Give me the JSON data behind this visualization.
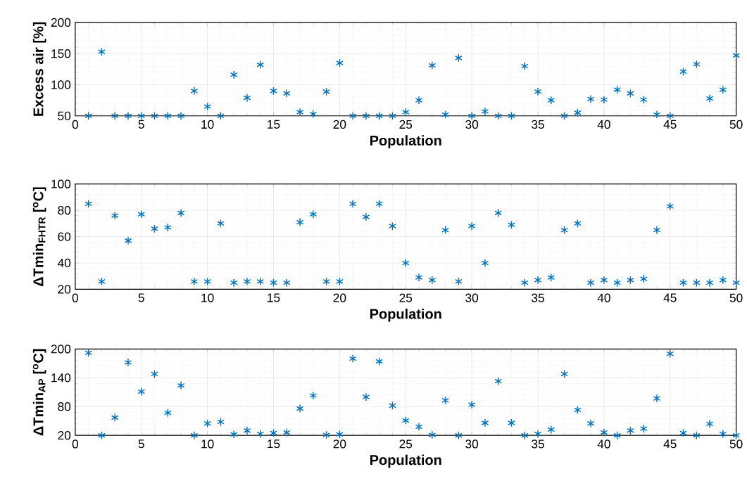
{
  "chart_data": [
    {
      "type": "scatter",
      "xlabel": "Population",
      "ylabel": "Excess air [%]",
      "color": "#0072bd",
      "marker": "cross",
      "grid": true,
      "xlim": [
        0,
        50
      ],
      "xticks": [
        0,
        5,
        10,
        15,
        20,
        25,
        30,
        35,
        40,
        45,
        50
      ],
      "ylim": [
        50,
        200
      ],
      "yticks": [
        50,
        100,
        150,
        200
      ],
      "x": [
        1,
        2,
        3,
        4,
        5,
        6,
        7,
        8,
        9,
        10,
        11,
        12,
        13,
        14,
        15,
        16,
        17,
        18,
        19,
        20,
        21,
        22,
        23,
        24,
        25,
        26,
        27,
        28,
        29,
        30,
        31,
        32,
        33,
        34,
        35,
        36,
        37,
        38,
        39,
        40,
        41,
        42,
        43,
        44,
        45,
        46,
        47,
        48,
        49,
        50
      ],
      "values": [
        50,
        153,
        50,
        50,
        50,
        50,
        50,
        50,
        90,
        65,
        50,
        116,
        79,
        132,
        90,
        86,
        56,
        53,
        89,
        135,
        50,
        50,
        50,
        50,
        56,
        75,
        131,
        52,
        143,
        50,
        57,
        50,
        50,
        130,
        89,
        75,
        50,
        55,
        77,
        76,
        92,
        86,
        76,
        52,
        50,
        121,
        133,
        78,
        92,
        147
      ]
    },
    {
      "type": "scatter",
      "xlabel": "Population",
      "ylabel": "ΔTmin$_{FHTR}$ [$^{o}$C]",
      "color": "#0072bd",
      "marker": "cross",
      "grid": true,
      "xlim": [
        0,
        50
      ],
      "xticks": [
        0,
        5,
        10,
        15,
        20,
        25,
        30,
        35,
        40,
        45,
        50
      ],
      "ylim": [
        20,
        100
      ],
      "yticks": [
        20,
        40,
        60,
        80,
        100
      ],
      "x": [
        1,
        2,
        3,
        4,
        5,
        6,
        7,
        8,
        9,
        10,
        11,
        12,
        13,
        14,
        15,
        16,
        17,
        18,
        19,
        20,
        21,
        22,
        23,
        24,
        25,
        26,
        27,
        28,
        29,
        30,
        31,
        32,
        33,
        34,
        35,
        36,
        37,
        38,
        39,
        40,
        41,
        42,
        43,
        44,
        45,
        46,
        47,
        48,
        49,
        50
      ],
      "values": [
        85,
        26,
        76,
        57,
        77,
        66,
        67,
        78,
        26,
        26,
        70,
        25,
        26,
        26,
        25,
        25,
        71,
        77,
        26,
        26,
        85,
        75,
        85,
        68,
        40,
        29,
        27,
        65,
        26,
        68,
        40,
        78,
        69,
        25,
        27,
        29,
        65,
        70,
        25,
        27,
        25,
        27,
        28,
        65,
        83,
        25,
        25,
        25,
        27,
        25
      ]
    },
    {
      "type": "scatter",
      "xlabel": "Population",
      "ylabel": "ΔTmin$_{AP}$ [$^{o}$C]",
      "color": "#0072bd",
      "marker": "cross",
      "grid": true,
      "xlim": [
        0,
        50
      ],
      "xticks": [
        0,
        5,
        10,
        15,
        20,
        25,
        30,
        35,
        40,
        45,
        50
      ],
      "ylim": [
        20,
        200
      ],
      "yticks": [
        20,
        80,
        140,
        200
      ],
      "x": [
        1,
        2,
        3,
        4,
        5,
        6,
        7,
        8,
        9,
        10,
        11,
        12,
        13,
        14,
        15,
        16,
        17,
        18,
        19,
        20,
        21,
        22,
        23,
        24,
        25,
        26,
        27,
        28,
        29,
        30,
        31,
        32,
        33,
        34,
        35,
        36,
        37,
        38,
        39,
        40,
        41,
        42,
        43,
        44,
        45,
        46,
        47,
        48,
        49,
        50
      ],
      "values": [
        192,
        20,
        57,
        172,
        111,
        148,
        67,
        124,
        20,
        45,
        48,
        22,
        30,
        23,
        25,
        26,
        76,
        103,
        21,
        22,
        180,
        100,
        174,
        82,
        51,
        38,
        21,
        93,
        20,
        84,
        46,
        133,
        46,
        20,
        23,
        32,
        148,
        73,
        45,
        26,
        20,
        30,
        34,
        97,
        190,
        25,
        20,
        44,
        23,
        20
      ]
    }
  ]
}
